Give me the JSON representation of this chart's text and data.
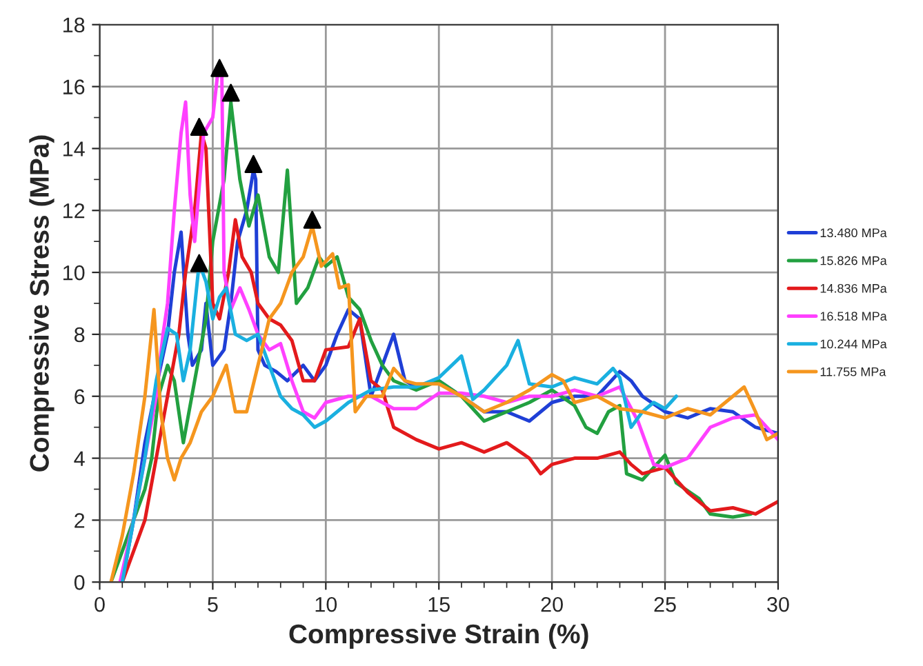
{
  "chart_data": {
    "type": "line",
    "xlabel": "Compressive Strain (%)",
    "ylabel": "Compressive Stress (MPa)",
    "xlim": [
      0,
      30
    ],
    "ylim": [
      0,
      18
    ],
    "xticks": [
      0,
      {
        "value": 1,
        "label": null
      },
      {
        "value": 2,
        "label": null
      },
      {
        "value": 3,
        "label": null
      },
      {
        "value": 4,
        "label": null
      },
      5,
      {
        "value": 6,
        "label": null
      },
      {
        "value": 7,
        "label": null
      },
      {
        "value": 8,
        "label": null
      },
      {
        "value": 9,
        "label": null
      },
      10,
      {
        "value": 11,
        "label": null
      },
      {
        "value": 12,
        "label": null
      },
      {
        "value": 13,
        "label": null
      },
      {
        "value": 14,
        "label": null
      },
      15,
      {
        "value": 16,
        "label": null
      },
      {
        "value": 17,
        "label": null
      },
      {
        "value": 18,
        "label": null
      },
      {
        "value": 19,
        "label": null
      },
      20,
      {
        "value": 21,
        "label": null
      },
      {
        "value": 22,
        "label": null
      },
      {
        "value": 23,
        "label": null
      },
      {
        "value": 24,
        "label": null
      },
      25,
      {
        "value": 26,
        "label": null
      },
      {
        "value": 27,
        "label": null
      },
      {
        "value": 28,
        "label": null
      },
      {
        "value": 29,
        "label": null
      },
      30
    ],
    "yticks": [
      0,
      {
        "value": 1,
        "label": null
      },
      2,
      {
        "value": 3,
        "label": null
      },
      4,
      {
        "value": 5,
        "label": null
      },
      6,
      {
        "value": 7,
        "label": null
      },
      8,
      {
        "value": 9,
        "label": null
      },
      10,
      {
        "value": 11,
        "label": null
      },
      12,
      {
        "value": 13,
        "label": null
      },
      14,
      {
        "value": 15,
        "label": null
      },
      16,
      {
        "value": 17,
        "label": null
      },
      18
    ],
    "grid": true,
    "legend": "right",
    "marker": "none",
    "line_style": "solid",
    "series": [
      {
        "name": "13.480 MPa",
        "color": "#1f3fd6",
        "x": [
          1,
          1.5,
          2,
          2.5,
          3,
          3.3,
          3.6,
          3.9,
          4.1,
          4.5,
          4.7,
          5,
          5.5,
          5.8,
          6.1,
          6.5,
          6.8,
          6.9,
          7,
          7.3,
          7.8,
          8.3,
          9,
          9.5,
          10,
          10.5,
          11,
          11.5,
          12,
          12.5,
          13,
          13.5,
          14,
          15,
          16,
          17,
          18,
          19,
          20,
          21,
          22,
          23,
          23.5,
          24,
          25,
          26,
          27,
          28,
          29,
          30
        ],
        "values": [
          0,
          2,
          4.5,
          6.3,
          8,
          10,
          11.3,
          8,
          7,
          7.5,
          9,
          7,
          7.5,
          9,
          11,
          12,
          13.3,
          13,
          7.5,
          7,
          6.8,
          6.5,
          7,
          6.5,
          7,
          8,
          8.8,
          8.5,
          6,
          7,
          8,
          6.5,
          6.3,
          6.5,
          6,
          5.5,
          5.5,
          5.2,
          5.8,
          6,
          6,
          6.8,
          6.5,
          6,
          5.5,
          5.3,
          5.6,
          5.5,
          5,
          4.8
        ]
      },
      {
        "name": "15.826 MPa",
        "color": "#22a040",
        "x": [
          0.5,
          1,
          1.5,
          2,
          2.3,
          2.6,
          3,
          3.3,
          3.7,
          4.2,
          4.7,
          5,
          5.5,
          5.8,
          6.2,
          6.6,
          7,
          7.5,
          7.9,
          8.3,
          8.7,
          9.2,
          9.7,
          10,
          10.5,
          11,
          11.5,
          12,
          12.5,
          13,
          14,
          15,
          16,
          17,
          18,
          19,
          20,
          21,
          21.5,
          22,
          22.5,
          23,
          23.3,
          24,
          25,
          25.5,
          26.5,
          27,
          28,
          28.8
        ],
        "values": [
          0,
          1,
          2,
          3,
          4,
          6,
          7,
          6.5,
          4.5,
          6.5,
          8.5,
          11,
          13,
          15.5,
          13,
          11.5,
          12.5,
          10.5,
          10,
          13.3,
          9,
          9.5,
          10.5,
          10.2,
          10.5,
          9.2,
          8.8,
          7.8,
          7,
          6.5,
          6.2,
          6.5,
          6,
          5.2,
          5.5,
          5.8,
          6.2,
          5.7,
          5,
          4.8,
          5.5,
          5.7,
          3.5,
          3.3,
          4.1,
          3.2,
          2.7,
          2.2,
          2.1,
          2.2
        ]
      },
      {
        "name": "14.836 MPa",
        "color": "#e31a1c",
        "x": [
          1,
          1.5,
          2,
          2.5,
          3,
          3.5,
          3.8,
          4.2,
          4.5,
          4.7,
          5,
          5.3,
          5.7,
          6,
          6.3,
          6.7,
          7,
          7.5,
          8,
          8.5,
          9,
          9.5,
          10,
          11,
          11.5,
          12,
          12.5,
          13,
          14,
          15,
          16,
          17,
          18,
          19,
          19.5,
          20,
          21,
          22,
          23,
          23.5,
          24,
          25,
          25.5,
          26,
          27,
          28,
          29,
          30
        ],
        "values": [
          0,
          1,
          2,
          4,
          6,
          8,
          10,
          12,
          14.5,
          14,
          9,
          8.5,
          10,
          11.7,
          10.5,
          10,
          9,
          8.5,
          8.3,
          7.8,
          6.5,
          6.5,
          7.5,
          7.6,
          8.5,
          6.5,
          6.2,
          5,
          4.6,
          4.3,
          4.5,
          4.2,
          4.5,
          4,
          3.5,
          3.8,
          4,
          4,
          4.2,
          3.8,
          3.5,
          3.7,
          3.3,
          2.9,
          2.3,
          2.4,
          2.2,
          2.6
        ]
      },
      {
        "name": "16.518 MPa",
        "color": "#ff40ff",
        "x": [
          0.9,
          1.5,
          2,
          2.5,
          2.8,
          3,
          3.3,
          3.6,
          3.8,
          4,
          4.2,
          4.6,
          5,
          5.2,
          5.4,
          5.5,
          5.8,
          6.2,
          6.6,
          7,
          7.5,
          8,
          8.5,
          9,
          9.5,
          10,
          11,
          12,
          13,
          14,
          15,
          16,
          17,
          18,
          19,
          20,
          21,
          22,
          23,
          23.8,
          24.5,
          25,
          26,
          27,
          28,
          29,
          30
        ],
        "values": [
          0,
          2,
          4,
          6,
          8,
          9,
          12,
          14.5,
          15.5,
          12.5,
          11,
          14.5,
          15,
          16.3,
          16.5,
          10,
          8.8,
          9.5,
          8.8,
          8,
          7.5,
          7.7,
          6.5,
          5.5,
          5.3,
          5.8,
          6,
          6,
          5.6,
          5.6,
          6.1,
          6.1,
          6,
          5.8,
          6,
          6,
          6.2,
          6,
          6.3,
          5.2,
          3.8,
          3.7,
          4,
          5,
          5.3,
          5.4,
          4.6
        ]
      },
      {
        "name": "10.244 MPa",
        "color": "#1ab0e0",
        "x": [
          1,
          1.5,
          2,
          2.5,
          3,
          3.4,
          3.7,
          4,
          4.4,
          4.7,
          5,
          5.3,
          5.6,
          6,
          6.5,
          7,
          7.5,
          8,
          8.5,
          9,
          9.5,
          10,
          11,
          12,
          13,
          14,
          15,
          16,
          16.5,
          17,
          18,
          18.5,
          19,
          20,
          21,
          22,
          22.7,
          23,
          23.5,
          24,
          24.5,
          25,
          25.5
        ],
        "values": [
          0,
          2,
          4,
          6.5,
          8.2,
          8,
          6.5,
          7.5,
          10.3,
          9.7,
          8.5,
          9.2,
          9.5,
          8,
          7.8,
          8,
          7,
          6,
          5.6,
          5.4,
          5,
          5.2,
          5.8,
          6.2,
          6.3,
          6.3,
          6.6,
          7.3,
          5.9,
          6.2,
          7,
          7.8,
          6.4,
          6.3,
          6.6,
          6.4,
          6.9,
          6.6,
          5,
          5.5,
          5.8,
          5.6,
          6
        ]
      },
      {
        "name": "11.755 MPa",
        "color": "#f5961e",
        "x": [
          0.5,
          1,
          1.5,
          2,
          2.4,
          2.7,
          3,
          3.3,
          3.6,
          4,
          4.5,
          5,
          5.3,
          5.6,
          6,
          6.5,
          7,
          7.5,
          8,
          8.5,
          9,
          9.4,
          9.8,
          10.3,
          10.6,
          11,
          11.3,
          11.8,
          12.5,
          13,
          13.5,
          14,
          15,
          16,
          17,
          18,
          19,
          20,
          20.5,
          21,
          22,
          23,
          24,
          25,
          26,
          27,
          28,
          28.5,
          29,
          29.5,
          30
        ],
        "values": [
          0,
          1.5,
          3.5,
          6,
          8.8,
          5.5,
          4,
          3.3,
          4,
          4.5,
          5.5,
          6,
          6.5,
          7,
          5.5,
          5.5,
          7,
          8.5,
          9,
          10,
          10.5,
          11.5,
          10.2,
          10.6,
          9.5,
          9.6,
          5.5,
          6,
          6,
          6.9,
          6.5,
          6.4,
          6.4,
          6,
          5.5,
          5.8,
          6.2,
          6.7,
          6.5,
          5.8,
          6,
          5.6,
          5.5,
          5.3,
          5.6,
          5.4,
          6,
          6.3,
          5.5,
          4.6,
          4.8
        ]
      },
      {
        "type": "scatter",
        "marker": "triangle",
        "color": "#000000",
        "x": [
          4.4,
          5.3,
          5.8,
          6.8,
          9.4,
          4.4
        ],
        "values": [
          14.7,
          16.6,
          15.8,
          13.5,
          11.7,
          10.3
        ]
      }
    ]
  }
}
